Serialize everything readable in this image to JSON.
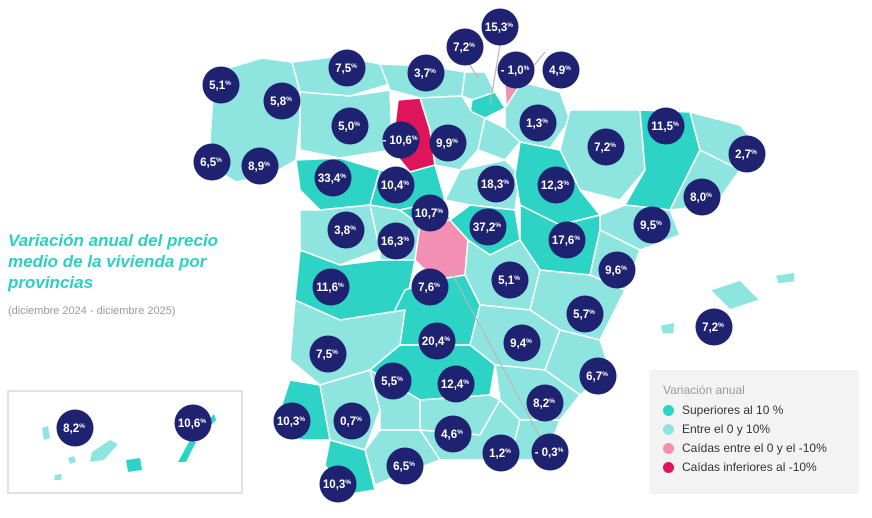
{
  "header": {
    "title": "Variación anual del precio medio de la vivienda por provincias",
    "subtitle": "(diciembre 2024 - diciembre 2025)"
  },
  "legend": {
    "title": "Variación anual",
    "items": [
      {
        "label": "Superiores al 10 %",
        "color": "#2dd4c6"
      },
      {
        "label": "Entre el 0 y 10%",
        "color": "#8ee5df"
      },
      {
        "label": "Caídas entre el 0 y el -10%",
        "color": "#f28fb3"
      },
      {
        "label": "Caídas inferiores al -10%",
        "color": "#e0145a"
      }
    ]
  },
  "colors": {
    "bubble": "#1f2270",
    "above_10": "#2dd4c6",
    "between_0_10": "#8ee5df",
    "fall_0_10": "#f28fb3",
    "fall_below_10": "#e0145a"
  },
  "values": [
    {
      "id": "pontevedra",
      "value": "6,5"
    },
    {
      "id": "coruna",
      "value": "5,1"
    },
    {
      "id": "lugo",
      "value": "5,8"
    },
    {
      "id": "ourense",
      "value": "8,9"
    },
    {
      "id": "asturias",
      "value": "7,5"
    },
    {
      "id": "cantabria",
      "value": "3,7"
    },
    {
      "id": "vizcaya",
      "value": "7,2"
    },
    {
      "id": "guipuzcoa",
      "value": "15,3"
    },
    {
      "id": "alava",
      "value": "- 1,0"
    },
    {
      "id": "navarra_top",
      "value": "4,9"
    },
    {
      "id": "leon",
      "value": "5,0"
    },
    {
      "id": "palencia",
      "value": "- 10,6"
    },
    {
      "id": "burgos",
      "value": "9,9"
    },
    {
      "id": "larioja",
      "value": "1,3"
    },
    {
      "id": "huesca",
      "value": "7,2"
    },
    {
      "id": "lleida",
      "value": "11,5"
    },
    {
      "id": "girona",
      "value": "2,7"
    },
    {
      "id": "barcelona",
      "value": "8,0"
    },
    {
      "id": "zamora",
      "value": "33,4"
    },
    {
      "id": "valladolid",
      "value": "10,4"
    },
    {
      "id": "soria",
      "value": "18,3"
    },
    {
      "id": "zaragoza",
      "value": "12,3"
    },
    {
      "id": "tarragona",
      "value": "9,5"
    },
    {
      "id": "salamanca",
      "value": "3,8"
    },
    {
      "id": "avila",
      "value": "16,3"
    },
    {
      "id": "segovia",
      "value": "10,7"
    },
    {
      "id": "guadalajara",
      "value": "37,2"
    },
    {
      "id": "teruel",
      "value": "17,6"
    },
    {
      "id": "castellon",
      "value": "9,6"
    },
    {
      "id": "baleares",
      "value": "7,2"
    },
    {
      "id": "caceres",
      "value": "11,6"
    },
    {
      "id": "madrid",
      "value": "7,6"
    },
    {
      "id": "cuenca",
      "value": "5,1"
    },
    {
      "id": "valencia",
      "value": "5,7"
    },
    {
      "id": "toledo",
      "value": "20,4"
    },
    {
      "id": "albacete",
      "value": "9,4"
    },
    {
      "id": "alicante",
      "value": "6,7"
    },
    {
      "id": "badajoz",
      "value": "7,5"
    },
    {
      "id": "cordoba",
      "value": "5,5"
    },
    {
      "id": "ciudadreal",
      "value": "12,4"
    },
    {
      "id": "murcia",
      "value": "8,2"
    },
    {
      "id": "huelva",
      "value": "10,3"
    },
    {
      "id": "sevilla",
      "value": "0,7"
    },
    {
      "id": "jaen",
      "value": "4,6"
    },
    {
      "id": "granada",
      "value": "1,2"
    },
    {
      "id": "almeria",
      "value": "- 0,3"
    },
    {
      "id": "cadiz",
      "value": "10,3"
    },
    {
      "id": "malaga",
      "value": "6,5"
    },
    {
      "id": "tenerife",
      "value": "8,2"
    },
    {
      "id": "laspalmas",
      "value": "10,6"
    }
  ]
}
